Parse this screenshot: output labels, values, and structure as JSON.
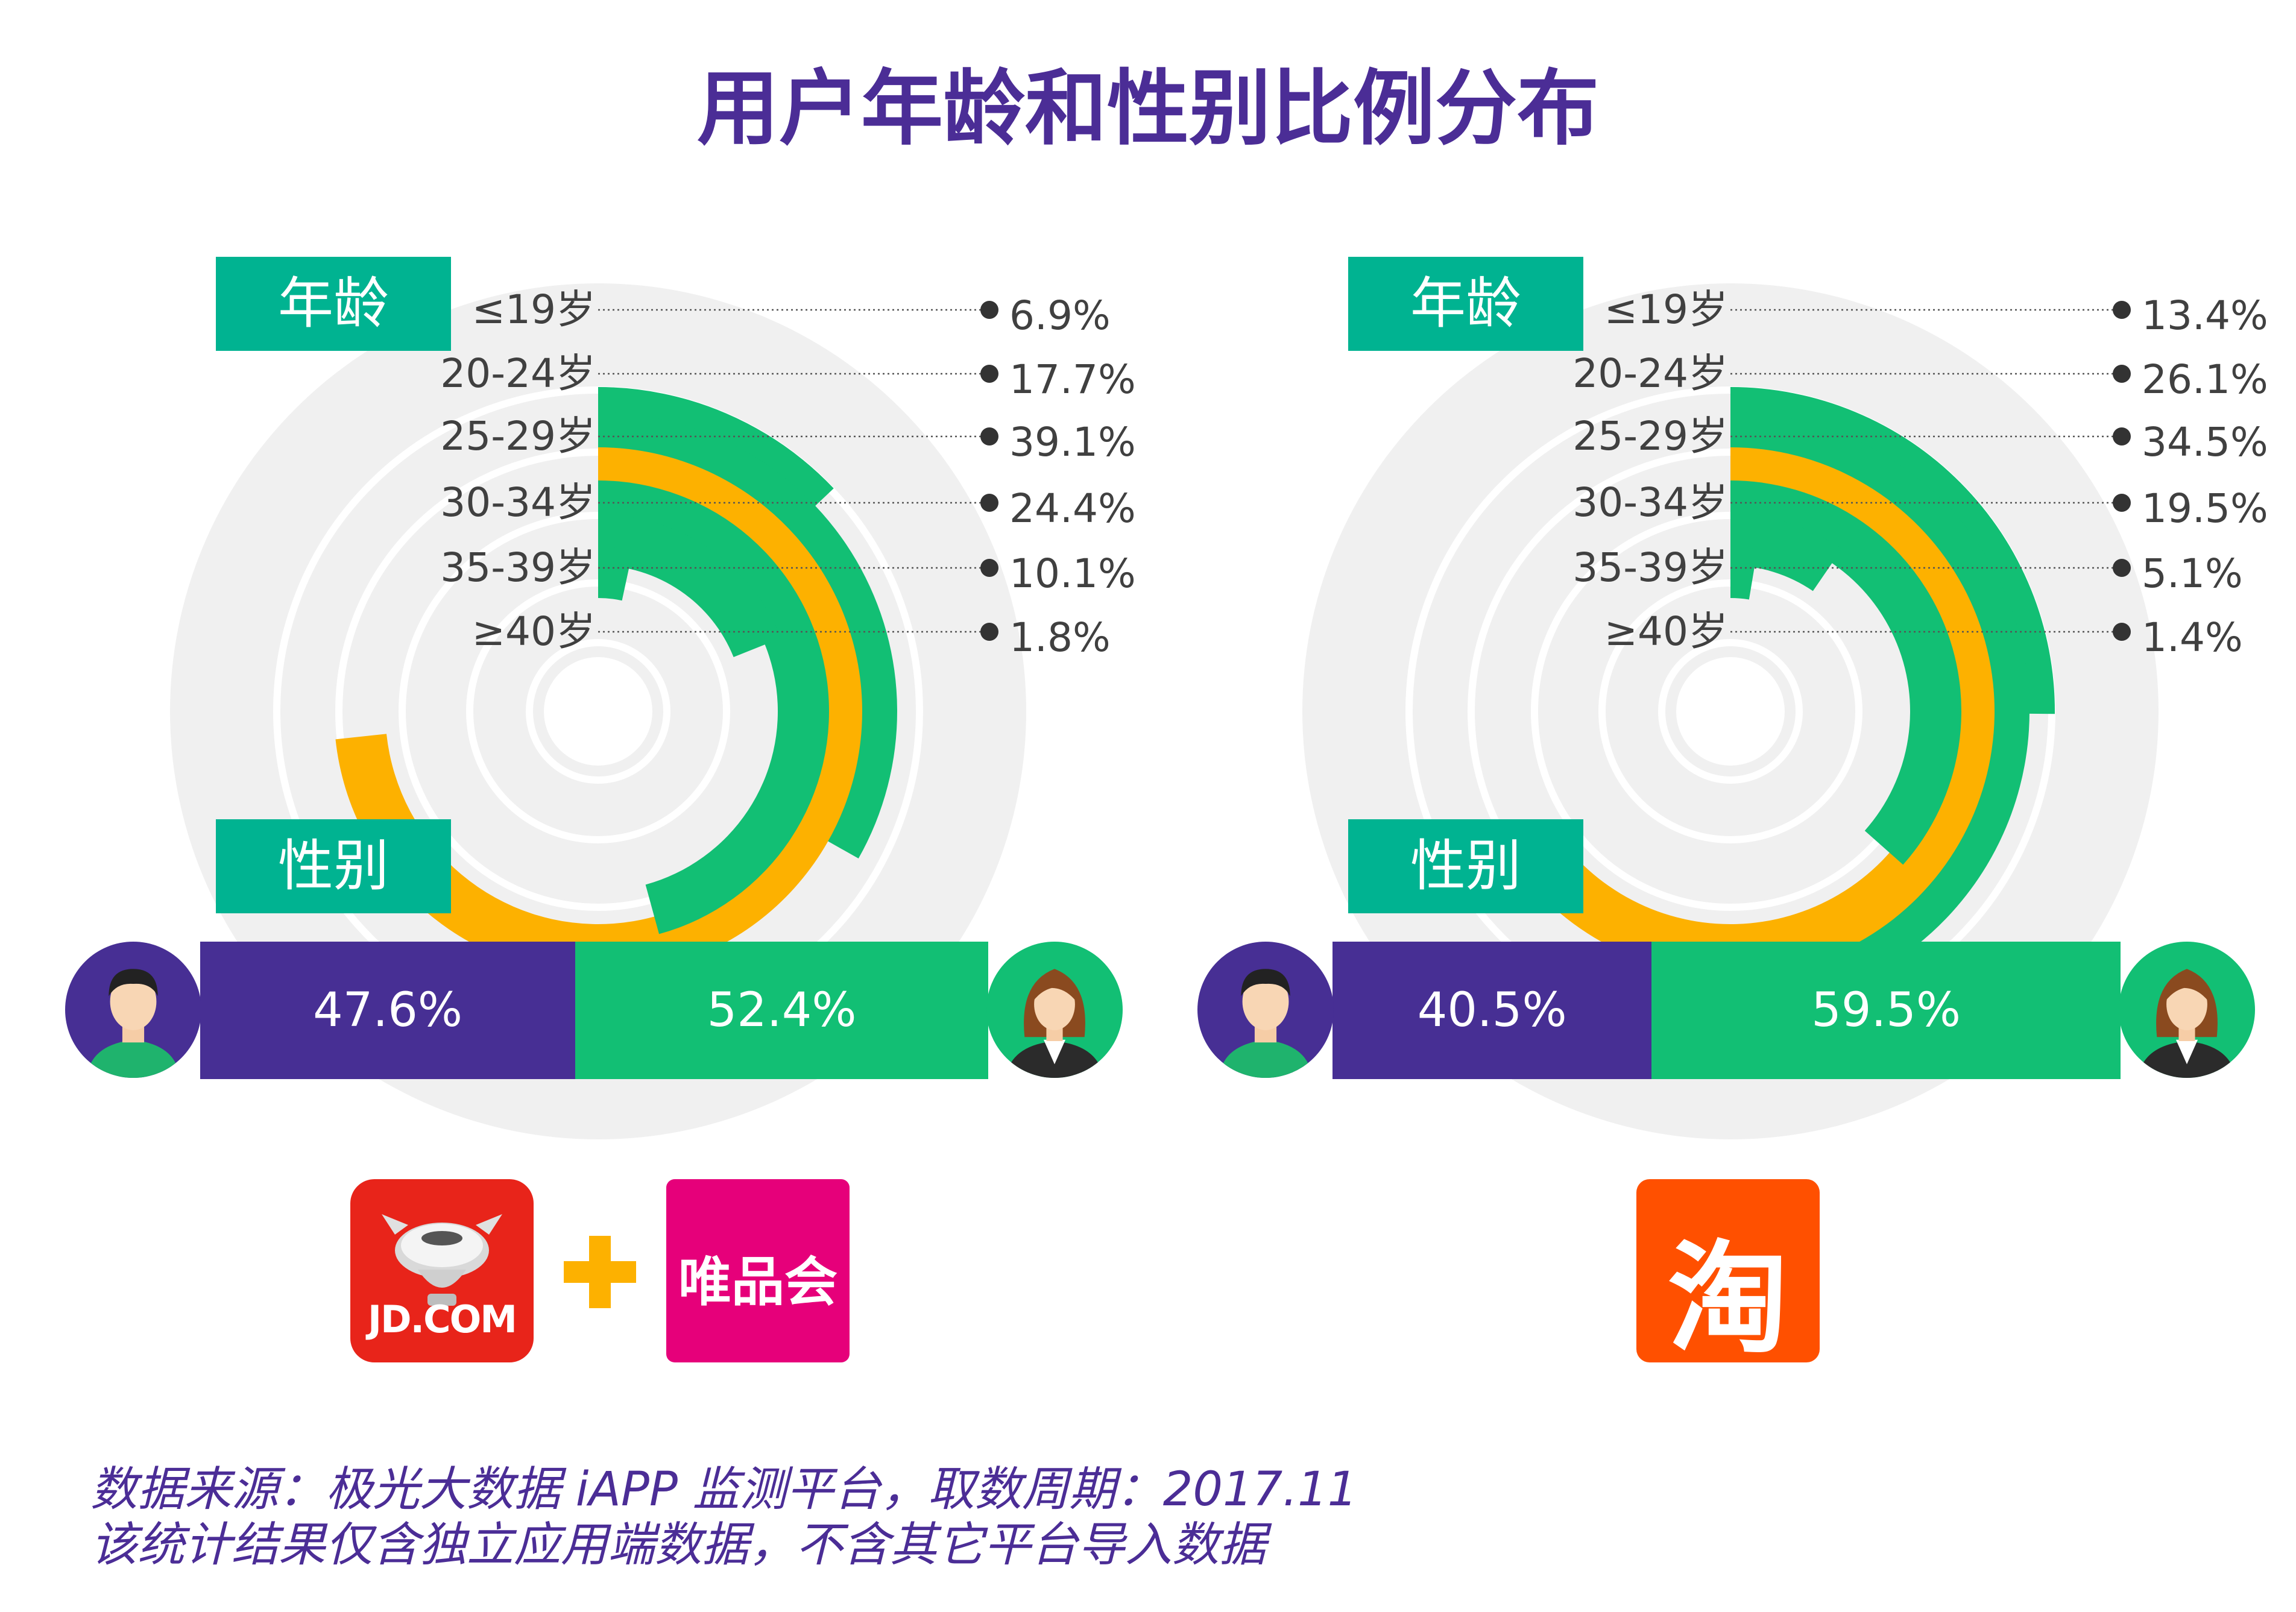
{
  "title": "用户年龄和性别比例分布",
  "chart_data": [
    {
      "type": "radial_bar",
      "platform": "JD.COM + 唯品会",
      "age_tag": "年龄",
      "gender_tag": "性别",
      "categories": [
        "≤19岁",
        "20-24岁",
        "25-29岁",
        "30-34岁",
        "35-39岁",
        "≥40岁"
      ],
      "values": [
        6.9,
        17.7,
        39.1,
        24.4,
        10.1,
        1.8
      ],
      "value_labels": [
        "6.9%",
        "17.7%",
        "39.1%",
        "24.4%",
        "10.1%",
        "1.8%"
      ],
      "highlight_index": 2,
      "gender": {
        "male": 47.6,
        "female": 52.4,
        "male_label": "47.6%",
        "female_label": "52.4%"
      }
    },
    {
      "type": "radial_bar",
      "platform": "淘宝",
      "age_tag": "年龄",
      "gender_tag": "性别",
      "categories": [
        "≤19岁",
        "20-24岁",
        "25-29岁",
        "30-34岁",
        "35-39岁",
        "≥40岁"
      ],
      "values": [
        13.4,
        26.1,
        34.5,
        19.5,
        5.1,
        1.4
      ],
      "value_labels": [
        "13.4%",
        "26.1%",
        "34.5%",
        "19.5%",
        "5.1%",
        "1.4%"
      ],
      "highlight_index": 2,
      "gender": {
        "male": 40.5,
        "female": 59.5,
        "male_label": "40.5%",
        "female_label": "59.5%"
      }
    }
  ],
  "colors": {
    "title": "#4b2d96",
    "bar_green": "#12bf74",
    "bar_highlight": "#fdb100",
    "tag_teal": "#00b391",
    "male_purple": "#472f94",
    "background_disc": "#f0f0f0"
  },
  "logos": {
    "jd_text": "JD.COM",
    "vip_text": "唯品会",
    "taobao_text": "淘",
    "plus_icon": "plus-icon"
  },
  "footnote": {
    "line1": "数据来源：极光大数据 iAPP 监测平台，取数周期：2017.11",
    "line2": "该统计结果仅含独立应用端数据，不含其它平台导入数据"
  }
}
